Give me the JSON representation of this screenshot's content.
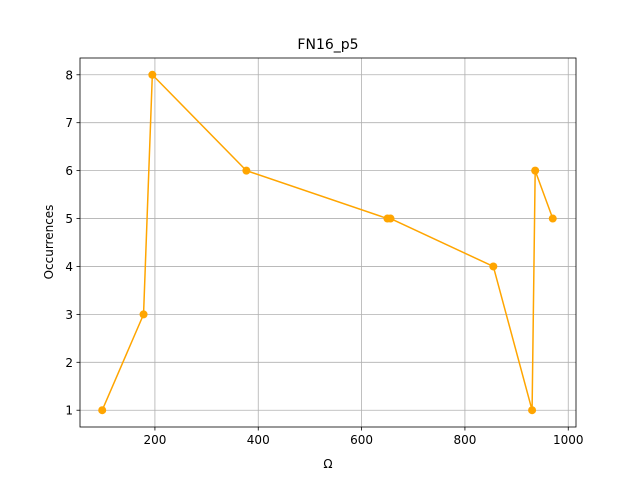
{
  "chart_data": {
    "type": "line",
    "title": "FN16_p5",
    "xlabel": "Ω",
    "ylabel": "Occurrences",
    "xlim": [
      55,
      1015
    ],
    "ylim": [
      0.65,
      8.35
    ],
    "xticks": [
      200,
      400,
      600,
      800,
      1000
    ],
    "yticks": [
      1,
      2,
      3,
      4,
      5,
      6,
      7,
      8
    ],
    "xtick_labels": [
      "200",
      "400",
      "600",
      "800",
      "1000"
    ],
    "ytick_labels": [
      "1",
      "2",
      "3",
      "4",
      "5",
      "6",
      "7",
      "8"
    ],
    "grid": true,
    "series": [
      {
        "x": [
          98,
          178,
          195,
          377,
          650,
          656,
          855,
          930,
          936,
          970
        ],
        "y": [
          1,
          3,
          8,
          6,
          5,
          5,
          4,
          1,
          6,
          5
        ],
        "color": "#ffa500",
        "marker": "circle"
      }
    ]
  }
}
